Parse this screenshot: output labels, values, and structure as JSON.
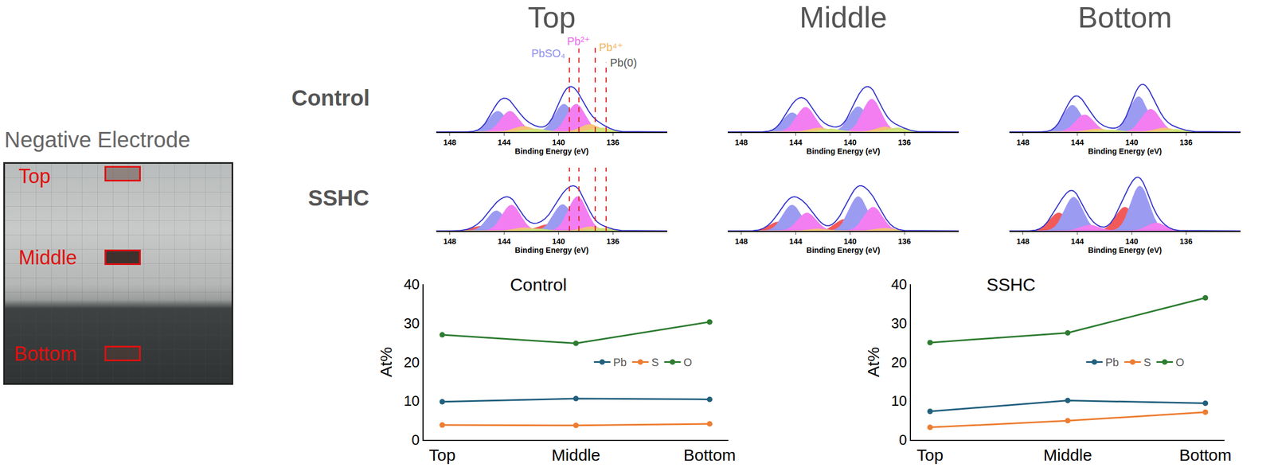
{
  "figure": {
    "photo_title": "Negative Electrode",
    "regions": [
      "Top",
      "Middle",
      "Bottom"
    ],
    "row_labels": [
      "Control",
      "SSHC"
    ],
    "column_titles": [
      "Top",
      "Middle",
      "Bottom"
    ]
  },
  "chart_data": [
    {
      "type": "area",
      "x_label": "Binding Energy (eV)",
      "xlim": [
        149,
        132
      ],
      "xticks": [
        148,
        144,
        140,
        136
      ],
      "ylim": [
        0,
        1.2
      ],
      "tick_labels": "x",
      "annotations": [
        {
          "text": "PbSO₄",
          "x": 139.2,
          "color": "#8f8ff0"
        },
        {
          "text": "Pb²⁺",
          "x": 138.5,
          "color": "#ee66ee"
        },
        {
          "text": "Pb⁴⁺",
          "x": 137.3,
          "color": "#f2b35c"
        },
        {
          "text": "Pb(0)",
          "x": 136.5,
          "color": "#555555"
        }
      ],
      "series": [
        {
          "color": "#9b9bf2",
          "peaks": [
            {
              "center": 139.6,
              "height": 0.55,
              "width": 1.6
            },
            {
              "center": 144.47,
              "height": 0.41,
              "width": 1.6
            }
          ]
        },
        {
          "color": "#f27ef2",
          "peaks": [
            {
              "center": 138.7,
              "height": 0.55,
              "width": 1.6
            },
            {
              "center": 143.57,
              "height": 0.41,
              "width": 1.6
            }
          ]
        },
        {
          "color": "#f5c27a",
          "peaks": [
            {
              "center": 137.7,
              "height": 0.15,
              "width": 1.6
            },
            {
              "center": 142.57,
              "height": 0.11,
              "width": 1.6
            }
          ]
        },
        {
          "color": "#cfe27a",
          "peaks": [
            {
              "center": 136.8,
              "height": 0.08,
              "width": 1.6
            },
            {
              "center": 141.67,
              "height": 0.06,
              "width": 1.6
            }
          ]
        },
        {
          "type": "line",
          "color": "#3434d0"
        }
      ]
    },
    {
      "type": "area",
      "x_label": "Binding Energy (eV)",
      "xlim": [
        149,
        132
      ],
      "xticks": [
        148,
        144,
        140,
        136
      ],
      "ylim": [
        0,
        1.2
      ],
      "tick_labels": "x",
      "series": [
        {
          "color": "#9b9bf2",
          "peaks": [
            {
              "center": 139.4,
              "height": 0.5,
              "width": 1.6
            },
            {
              "center": 144.27,
              "height": 0.38,
              "width": 1.6
            }
          ]
        },
        {
          "color": "#f27ef2",
          "peaks": [
            {
              "center": 138.4,
              "height": 0.65,
              "width": 1.6
            },
            {
              "center": 143.27,
              "height": 0.49,
              "width": 1.6
            }
          ]
        },
        {
          "color": "#f5c27a",
          "peaks": [
            {
              "center": 137.4,
              "height": 0.1,
              "width": 1.6
            },
            {
              "center": 142.27,
              "height": 0.08,
              "width": 1.6
            }
          ]
        },
        {
          "color": "#cfe27a",
          "peaks": [
            {
              "center": 136.5,
              "height": 0.08,
              "width": 1.6
            },
            {
              "center": 141.37,
              "height": 0.06,
              "width": 1.6
            }
          ]
        },
        {
          "type": "line",
          "color": "#3434d0"
        }
      ]
    },
    {
      "type": "area",
      "x_label": "Binding Energy (eV)",
      "xlim": [
        149,
        132
      ],
      "xticks": [
        148,
        144,
        140,
        136
      ],
      "ylim": [
        0,
        1.2
      ],
      "tick_labels": "x",
      "series": [
        {
          "color": "#9b9bf2",
          "peaks": [
            {
              "center": 139.5,
              "height": 0.7,
              "width": 1.6
            },
            {
              "center": 144.37,
              "height": 0.53,
              "width": 1.6
            }
          ]
        },
        {
          "color": "#f27ef2",
          "peaks": [
            {
              "center": 138.6,
              "height": 0.45,
              "width": 1.6
            },
            {
              "center": 143.47,
              "height": 0.34,
              "width": 1.6
            }
          ]
        },
        {
          "color": "#f5c27a",
          "peaks": [
            {
              "center": 137.6,
              "height": 0.08,
              "width": 1.6
            },
            {
              "center": 142.47,
              "height": 0.06,
              "width": 1.6
            }
          ]
        },
        {
          "color": "#cfe27a",
          "peaks": [
            {
              "center": 136.7,
              "height": 0.05,
              "width": 1.6
            },
            {
              "center": 141.57,
              "height": 0.04,
              "width": 1.6
            }
          ]
        },
        {
          "type": "line",
          "color": "#3434d0"
        }
      ]
    },
    {
      "type": "area",
      "x_label": "Binding Energy (eV)",
      "xlim": [
        149,
        132
      ],
      "xticks": [
        148,
        144,
        140,
        136
      ],
      "ylim": [
        0,
        1.2
      ],
      "tick_labels": "x",
      "reference_lines": [
        139.2,
        138.5,
        137.3,
        136.5
      ],
      "series": [
        {
          "color": "#f25a5a",
          "peaks": [
            {
              "center": 140.8,
              "height": 0.12,
              "width": 1.6
            },
            {
              "center": 145.67,
              "height": 0.09,
              "width": 1.6
            }
          ]
        },
        {
          "color": "#9b9bf2",
          "peaks": [
            {
              "center": 139.7,
              "height": 0.5,
              "width": 1.6
            },
            {
              "center": 144.57,
              "height": 0.38,
              "width": 1.6
            }
          ]
        },
        {
          "color": "#f27ef2",
          "peaks": [
            {
              "center": 138.6,
              "height": 0.65,
              "width": 1.6
            },
            {
              "center": 143.47,
              "height": 0.49,
              "width": 1.6
            }
          ]
        },
        {
          "color": "#f5c27a",
          "peaks": [
            {
              "center": 137.6,
              "height": 0.08,
              "width": 1.6
            },
            {
              "center": 142.47,
              "height": 0.06,
              "width": 1.6
            }
          ]
        },
        {
          "color": "#cfe27a",
          "peaks": [
            {
              "center": 136.7,
              "height": 0.05,
              "width": 1.6
            },
            {
              "center": 141.57,
              "height": 0.04,
              "width": 1.6
            }
          ]
        },
        {
          "type": "line",
          "color": "#3434d0"
        }
      ]
    },
    {
      "type": "area",
      "x_label": "Binding Energy (eV)",
      "xlim": [
        149,
        132
      ],
      "xticks": [
        148,
        144,
        140,
        136
      ],
      "ylim": [
        0,
        1.2
      ],
      "tick_labels": "x",
      "series": [
        {
          "color": "#f25a5a",
          "peaks": [
            {
              "center": 140.4,
              "height": 0.22,
              "width": 1.6
            },
            {
              "center": 145.27,
              "height": 0.17,
              "width": 1.6
            }
          ]
        },
        {
          "color": "#9b9bf2",
          "peaks": [
            {
              "center": 139.4,
              "height": 0.65,
              "width": 1.6
            },
            {
              "center": 144.27,
              "height": 0.49,
              "width": 1.6
            }
          ]
        },
        {
          "color": "#f27ef2",
          "peaks": [
            {
              "center": 138.3,
              "height": 0.45,
              "width": 1.6
            },
            {
              "center": 143.17,
              "height": 0.34,
              "width": 1.6
            }
          ]
        },
        {
          "color": "#f5c27a",
          "peaks": [
            {
              "center": 137.4,
              "height": 0.05,
              "width": 1.6
            },
            {
              "center": 142.27,
              "height": 0.04,
              "width": 1.6
            }
          ]
        },
        {
          "type": "line",
          "color": "#3434d0"
        }
      ]
    },
    {
      "type": "area",
      "x_label": "Binding Energy (eV)",
      "xlim": [
        149,
        132
      ],
      "xticks": [
        148,
        144,
        140,
        136
      ],
      "ylim": [
        0,
        1.2
      ],
      "tick_labels": "x",
      "series": [
        {
          "color": "#f25a5a",
          "peaks": [
            {
              "center": 140.5,
              "height": 0.45,
              "width": 1.6
            },
            {
              "center": 145.37,
              "height": 0.34,
              "width": 1.6
            }
          ]
        },
        {
          "color": "#9b9bf2",
          "peaks": [
            {
              "center": 139.4,
              "height": 0.85,
              "width": 1.6
            },
            {
              "center": 144.27,
              "height": 0.64,
              "width": 1.6
            }
          ]
        },
        {
          "color": "#f27ef2",
          "peaks": [
            {
              "center": 138.2,
              "height": 0.15,
              "width": 1.6
            },
            {
              "center": 143.07,
              "height": 0.11,
              "width": 1.6
            }
          ]
        },
        {
          "type": "line",
          "color": "#3434d0"
        }
      ]
    },
    {
      "type": "line",
      "title": "Control",
      "y_label": "At%",
      "categories": [
        "Top",
        "Middle",
        "Bottom"
      ],
      "ylim": [
        0,
        40
      ],
      "yticks": [
        0,
        10,
        20,
        30,
        40
      ],
      "legend": "right",
      "marker": "circle",
      "grid": false,
      "series": [
        {
          "name": "Pb",
          "color": "#22607e",
          "values": [
            9.8,
            10.6,
            10.4
          ]
        },
        {
          "name": "S",
          "color": "#ed7d31",
          "values": [
            3.8,
            3.7,
            4.1
          ]
        },
        {
          "name": "O",
          "color": "#2e7d32",
          "values": [
            27.0,
            24.8,
            30.3
          ]
        }
      ]
    },
    {
      "type": "line",
      "title": "SSHC",
      "y_label": "At%",
      "categories": [
        "Top",
        "Middle",
        "Bottom"
      ],
      "ylim": [
        0,
        40
      ],
      "yticks": [
        0,
        10,
        20,
        30,
        40
      ],
      "legend": "right",
      "marker": "circle",
      "grid": false,
      "series": [
        {
          "name": "Pb",
          "color": "#22607e",
          "values": [
            7.3,
            10.1,
            9.4
          ]
        },
        {
          "name": "S",
          "color": "#ed7d31",
          "values": [
            3.2,
            4.9,
            7.1
          ]
        },
        {
          "name": "O",
          "color": "#2e7d32",
          "values": [
            25.0,
            27.5,
            36.5
          ]
        }
      ]
    }
  ]
}
